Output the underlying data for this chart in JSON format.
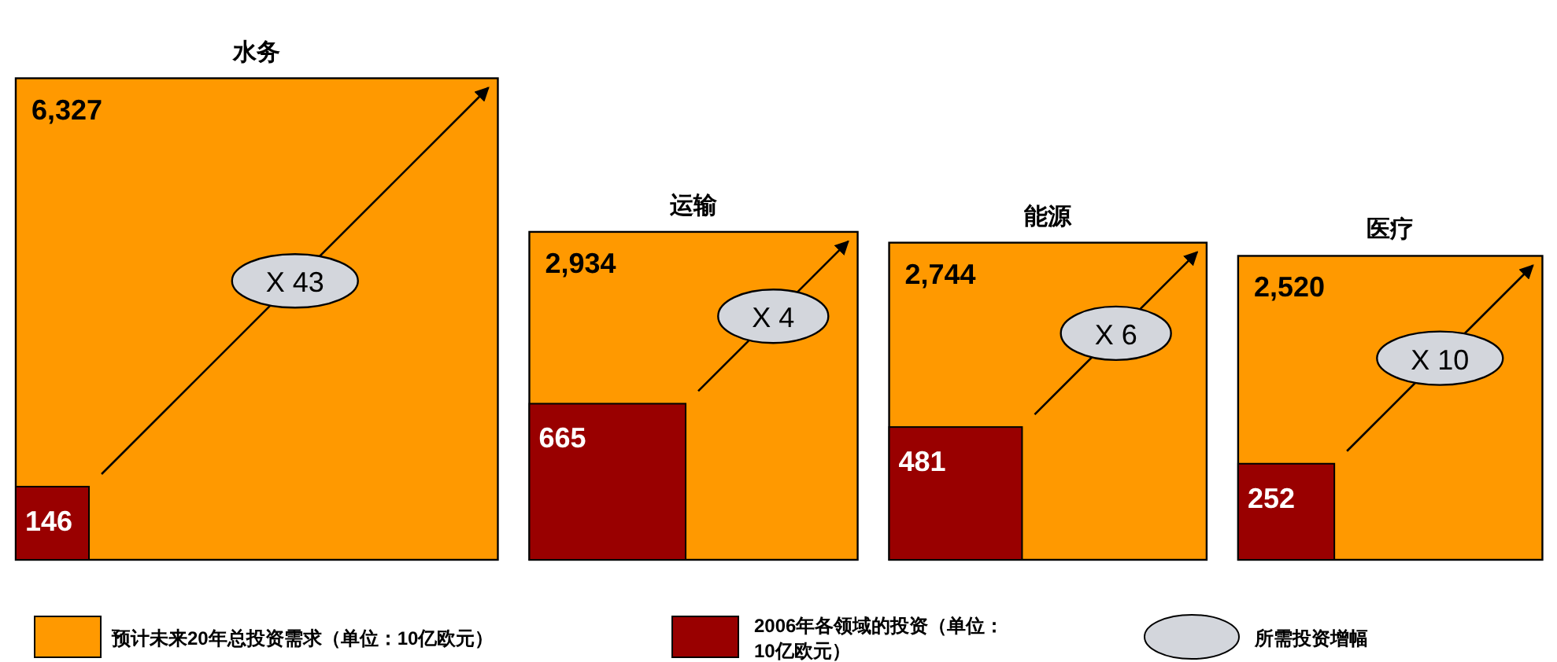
{
  "chart_data": {
    "type": "other",
    "categories": [
      "水务",
      "运输",
      "能源",
      "医疗"
    ],
    "series": [
      {
        "name": "预计未来20年总投资需求（单位：10亿欧元）",
        "color": "#ff9900",
        "values": [
          6327,
          2934,
          2744,
          2520
        ],
        "value_labels": [
          "6,327",
          "2,934",
          "2,744",
          "2,520"
        ]
      },
      {
        "name": "2006年各领域的投资（单位：10亿欧元）",
        "color": "#990000",
        "values": [
          146,
          665,
          481,
          252
        ],
        "value_labels": [
          "146",
          "665",
          "481",
          "252"
        ]
      },
      {
        "name": "所需投资增幅",
        "color": "#d3d6dc",
        "values": [
          43,
          4,
          6,
          10
        ],
        "value_labels": [
          "X 43",
          "X 4",
          "X 6",
          "X 10"
        ]
      }
    ],
    "legend": "bottom"
  }
}
